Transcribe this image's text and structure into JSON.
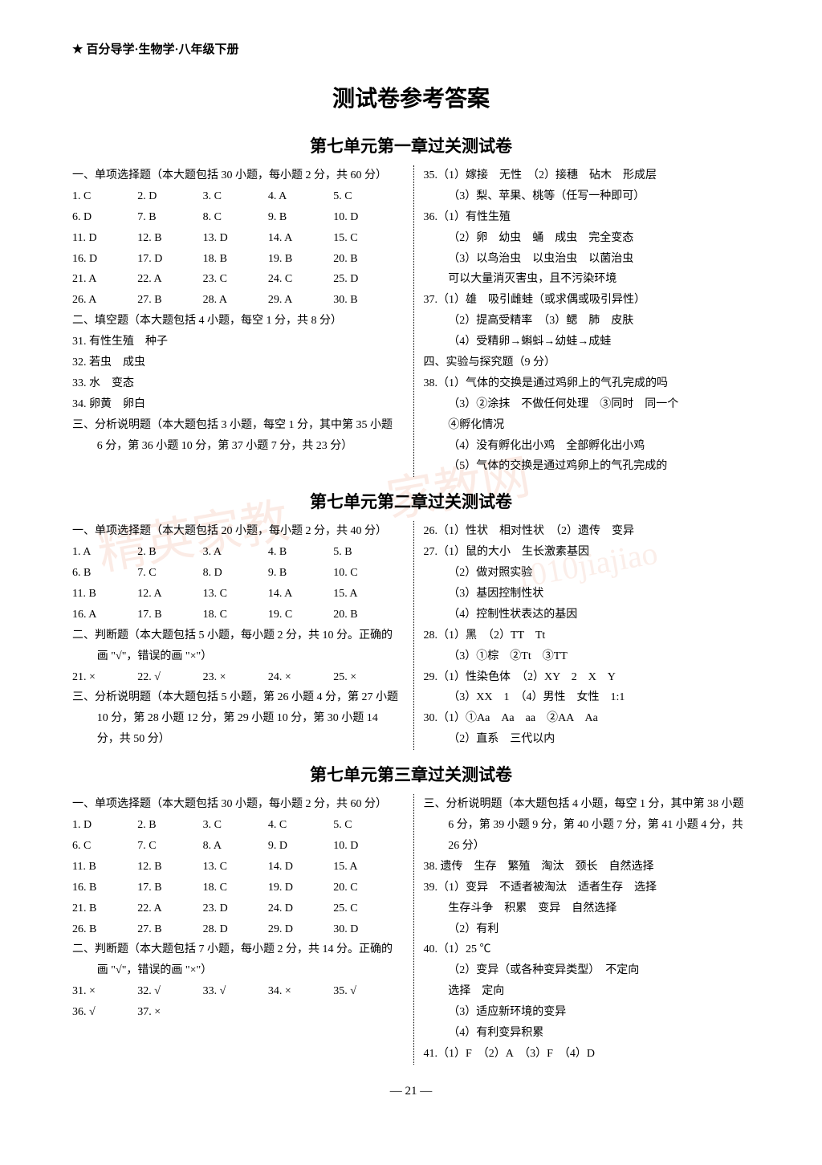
{
  "header": {
    "star": "★",
    "text": "百分导学·生物学·八年级下册"
  },
  "main_title": "测试卷参考答案",
  "page_number": "— 21 —",
  "watermark": {
    "w1": "精英家教",
    "w2": "家教网",
    "w3": "1010jiajiao"
  },
  "test1": {
    "title": "第七单元第一章过关测试卷",
    "p1_head": "一、单项选择题（本大题包括 30 小题，每小题 2 分，共 60 分）",
    "mc": [
      {
        "n": "1.",
        "a": "C"
      },
      {
        "n": "2.",
        "a": "D"
      },
      {
        "n": "3.",
        "a": "C"
      },
      {
        "n": "4.",
        "a": "A"
      },
      {
        "n": "5.",
        "a": "C"
      },
      {
        "n": "6.",
        "a": "D"
      },
      {
        "n": "7.",
        "a": "B"
      },
      {
        "n": "8.",
        "a": "C"
      },
      {
        "n": "9.",
        "a": "B"
      },
      {
        "n": "10.",
        "a": "D"
      },
      {
        "n": "11.",
        "a": "D"
      },
      {
        "n": "12.",
        "a": "B"
      },
      {
        "n": "13.",
        "a": "D"
      },
      {
        "n": "14.",
        "a": "A"
      },
      {
        "n": "15.",
        "a": "C"
      },
      {
        "n": "16.",
        "a": "D"
      },
      {
        "n": "17.",
        "a": "D"
      },
      {
        "n": "18.",
        "a": "B"
      },
      {
        "n": "19.",
        "a": "B"
      },
      {
        "n": "20.",
        "a": "B"
      },
      {
        "n": "21.",
        "a": "A"
      },
      {
        "n": "22.",
        "a": "A"
      },
      {
        "n": "23.",
        "a": "C"
      },
      {
        "n": "24.",
        "a": "C"
      },
      {
        "n": "25.",
        "a": "D"
      },
      {
        "n": "26.",
        "a": "A"
      },
      {
        "n": "27.",
        "a": "B"
      },
      {
        "n": "28.",
        "a": "A"
      },
      {
        "n": "29.",
        "a": "A"
      },
      {
        "n": "30.",
        "a": "B"
      }
    ],
    "p2_head": "二、填空题（本大题包括 4 小题，每空 1 分，共 8 分）",
    "q31": "31. 有性生殖　种子",
    "q32": "32. 若虫　成虫",
    "q33": "33. 水　变态",
    "q34": "34. 卵黄　卵白",
    "p3_head": "三、分析说明题（本大题包括 3 小题，每空 1 分，其中第 35 小题 6 分，第 36 小题 10 分，第 37 小题 7 分，共 23 分）",
    "q35_1": "35.（1）嫁接　无性　（2）接穗　砧木　形成层",
    "q35_2": "（3）梨、苹果、桃等（任写一种即可）",
    "q36_1": "36.（1）有性生殖",
    "q36_2": "（2）卵　幼虫　蛹　成虫　完全变态",
    "q36_3": "（3）以鸟治虫　以虫治虫　以菌治虫",
    "q36_4": "可以大量消灭害虫，且不污染环境",
    "q37_1": "37.（1）雄　吸引雌蛙（或求偶或吸引异性）",
    "q37_2": "（2）提高受精率　（3）鳃　肺　皮肤",
    "q37_3": "（4）受精卵→蝌蚪→幼蛙→成蛙",
    "p4_head": "四、实验与探究题（9 分）",
    "q38_1": "38.（1）气体的交换是通过鸡卵上的气孔完成的吗",
    "q38_2": "（3）②涂抹　不做任何处理　③同时　同一个",
    "q38_3": "④孵化情况",
    "q38_4": "（4）没有孵化出小鸡　全部孵化出小鸡",
    "q38_5": "（5）气体的交换是通过鸡卵上的气孔完成的"
  },
  "test2": {
    "title": "第七单元第二章过关测试卷",
    "p1_head": "一、单项选择题（本大题包括 20 小题，每小题 2 分，共 40 分）",
    "mc": [
      {
        "n": "1.",
        "a": "A"
      },
      {
        "n": "2.",
        "a": "B"
      },
      {
        "n": "3.",
        "a": "A"
      },
      {
        "n": "4.",
        "a": "B"
      },
      {
        "n": "5.",
        "a": "B"
      },
      {
        "n": "6.",
        "a": "B"
      },
      {
        "n": "7.",
        "a": "C"
      },
      {
        "n": "8.",
        "a": "D"
      },
      {
        "n": "9.",
        "a": "B"
      },
      {
        "n": "10.",
        "a": "C"
      },
      {
        "n": "11.",
        "a": "B"
      },
      {
        "n": "12.",
        "a": "A"
      },
      {
        "n": "13.",
        "a": "C"
      },
      {
        "n": "14.",
        "a": "A"
      },
      {
        "n": "15.",
        "a": "A"
      },
      {
        "n": "16.",
        "a": "A"
      },
      {
        "n": "17.",
        "a": "B"
      },
      {
        "n": "18.",
        "a": "C"
      },
      {
        "n": "19.",
        "a": "C"
      },
      {
        "n": "20.",
        "a": "B"
      }
    ],
    "p2_head": "二、判断题（本大题包括 5 小题，每小题 2 分，共 10 分。正确的画 \"√\"，错误的画 \"×\"）",
    "tf": [
      {
        "n": "21.",
        "a": "×"
      },
      {
        "n": "22.",
        "a": "√"
      },
      {
        "n": "23.",
        "a": "×"
      },
      {
        "n": "24.",
        "a": "×"
      },
      {
        "n": "25.",
        "a": "×"
      }
    ],
    "p3_head": "三、分析说明题（本大题包括 5 小题，第 26 小题 4 分，第 27 小题 10 分，第 28 小题 12 分，第 29 小题 10 分，第 30 小题 14 分，共 50 分）",
    "q26": "26.（1）性状　相对性状　（2）遗传　变异",
    "q27_1": "27.（1）鼠的大小　生长激素基因",
    "q27_2": "（2）做对照实验",
    "q27_3": "（3）基因控制性状",
    "q27_4": "（4）控制性状表达的基因",
    "q28_1": "28.（1）黑　（2）TT　Tt",
    "q28_2": "（3）①棕　②Tt　③TT",
    "q29_1": "29.（1）性染色体　（2）XY　2　X　Y",
    "q29_2": "（3）XX　1　（4）男性　女性　1:1",
    "q30_1": "30.（1）①Aa　Aa　aa　②AA　Aa",
    "q30_2": "（2）直系　三代以内"
  },
  "test3": {
    "title": "第七单元第三章过关测试卷",
    "p1_head": "一、单项选择题（本大题包括 30 小题，每小题 2 分，共 60 分）",
    "mc": [
      {
        "n": "1.",
        "a": "D"
      },
      {
        "n": "2.",
        "a": "B"
      },
      {
        "n": "3.",
        "a": "C"
      },
      {
        "n": "4.",
        "a": "C"
      },
      {
        "n": "5.",
        "a": "C"
      },
      {
        "n": "6.",
        "a": "C"
      },
      {
        "n": "7.",
        "a": "C"
      },
      {
        "n": "8.",
        "a": "A"
      },
      {
        "n": "9.",
        "a": "D"
      },
      {
        "n": "10.",
        "a": "D"
      },
      {
        "n": "11.",
        "a": "B"
      },
      {
        "n": "12.",
        "a": "B"
      },
      {
        "n": "13.",
        "a": "C"
      },
      {
        "n": "14.",
        "a": "D"
      },
      {
        "n": "15.",
        "a": "A"
      },
      {
        "n": "16.",
        "a": "B"
      },
      {
        "n": "17.",
        "a": "B"
      },
      {
        "n": "18.",
        "a": "C"
      },
      {
        "n": "19.",
        "a": "D"
      },
      {
        "n": "20.",
        "a": "C"
      },
      {
        "n": "21.",
        "a": "B"
      },
      {
        "n": "22.",
        "a": "A"
      },
      {
        "n": "23.",
        "a": "D"
      },
      {
        "n": "24.",
        "a": "D"
      },
      {
        "n": "25.",
        "a": "C"
      },
      {
        "n": "26.",
        "a": "B"
      },
      {
        "n": "27.",
        "a": "B"
      },
      {
        "n": "28.",
        "a": "D"
      },
      {
        "n": "29.",
        "a": "D"
      },
      {
        "n": "30.",
        "a": "D"
      }
    ],
    "p2_head": "二、判断题（本大题包括 7 小题，每小题 2 分，共 14 分。正确的画 \"√\"，错误的画 \"×\"）",
    "tf": [
      {
        "n": "31.",
        "a": "×"
      },
      {
        "n": "32.",
        "a": "√"
      },
      {
        "n": "33.",
        "a": "√"
      },
      {
        "n": "34.",
        "a": "×"
      },
      {
        "n": "35.",
        "a": "√"
      },
      {
        "n": "36.",
        "a": "√"
      },
      {
        "n": "37.",
        "a": "×"
      }
    ],
    "p3_head": "三、分析说明题（本大题包括 4 小题，每空 1 分，其中第 38 小题 6 分，第 39 小题 9 分，第 40 小题 7 分，第 41 小题 4 分，共 26 分）",
    "q38": "38. 遗传　生存　繁殖　淘汰　颈长　自然选择",
    "q39_1": "39.（1）变异　不适者被淘汰　适者生存　选择",
    "q39_2": "生存斗争　积累　变异　自然选择",
    "q39_3": "（2）有利",
    "q40_1": "40.（1）25 ℃",
    "q40_2": "（2）变异（或各种变异类型）　不定向",
    "q40_3": "选择　定向",
    "q40_4": "（3）适应新环境的变异",
    "q40_5": "（4）有利变异积累",
    "q41": "41.（1）F　（2）A　（3）F　（4）D"
  }
}
